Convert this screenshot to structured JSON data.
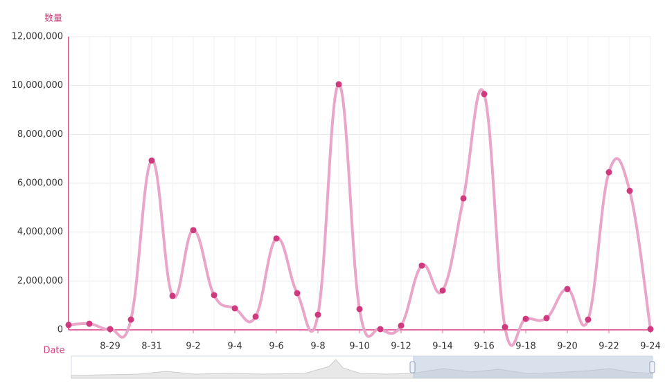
{
  "chart_data": {
    "type": "line",
    "y_axis_name": "数量",
    "x_axis_name": "Date",
    "categories": [
      null,
      null,
      "8-29",
      null,
      "8-31",
      null,
      "9-2",
      null,
      "9-4",
      null,
      "9-6",
      null,
      "9-8",
      null,
      "9-10",
      null,
      "9-12",
      null,
      "9-14",
      null,
      "9-16",
      null,
      "9-18",
      null,
      "9-20",
      null,
      "9-22",
      null,
      "9-24"
    ],
    "series": [
      {
        "name": "数量",
        "color": "#e9a6c9",
        "point_color": "#cf3a7e",
        "values": [
          200000,
          250000,
          30000,
          420000,
          6930000,
          1390000,
          4080000,
          1420000,
          880000,
          540000,
          3740000,
          1500000,
          620000,
          10050000,
          850000,
          30000,
          170000,
          2630000,
          1610000,
          5380000,
          9650000,
          110000,
          450000,
          480000,
          1670000,
          420000,
          6450000,
          5690000,
          30000
        ]
      }
    ],
    "ylim": [
      0,
      12000000
    ],
    "yticks": [
      0,
      {
        "value": 2000000,
        "label": "2,000,000"
      },
      {
        "value": 4000000,
        "label": "4,000,000"
      },
      {
        "value": 6000000,
        "label": "6,000,000"
      },
      {
        "value": 8000000,
        "label": "8,000,000"
      },
      {
        "value": 10000000,
        "label": "10,000,000"
      },
      {
        "value": 12000000,
        "label": "12,000,000"
      }
    ],
    "grid": true,
    "smooth": true
  }
}
